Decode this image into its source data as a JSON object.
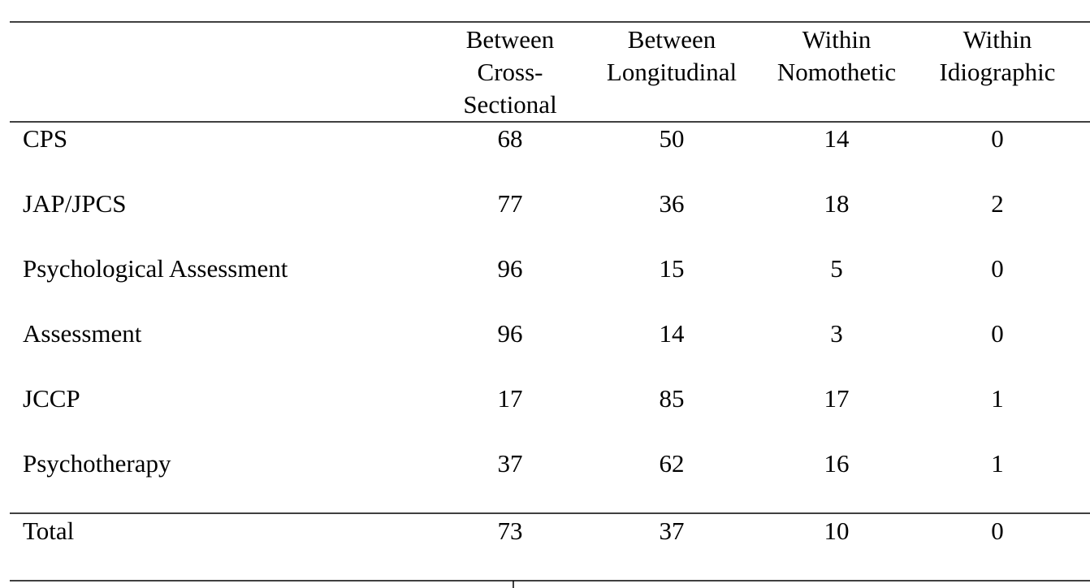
{
  "table": {
    "columns": [
      [
        "Between",
        "Cross-",
        "Sectional"
      ],
      [
        "Between",
        "Longitudinal"
      ],
      [
        "Within",
        "Nomothetic"
      ],
      [
        "Within",
        "Idiographic"
      ]
    ],
    "rows": [
      {
        "label": "CPS",
        "values": [
          68,
          50,
          14,
          0
        ]
      },
      {
        "label": "JAP/JPCS",
        "values": [
          77,
          36,
          18,
          2
        ]
      },
      {
        "label": "Psychological Assessment",
        "values": [
          96,
          15,
          5,
          0
        ]
      },
      {
        "label": "Assessment",
        "values": [
          96,
          14,
          3,
          0
        ]
      },
      {
        "label": "JCCP",
        "values": [
          17,
          85,
          17,
          1
        ]
      },
      {
        "label": "Psychotherapy",
        "values": [
          37,
          62,
          16,
          1
        ]
      }
    ],
    "total": {
      "label": "Total",
      "values": [
        73,
        37,
        10,
        0
      ]
    }
  }
}
